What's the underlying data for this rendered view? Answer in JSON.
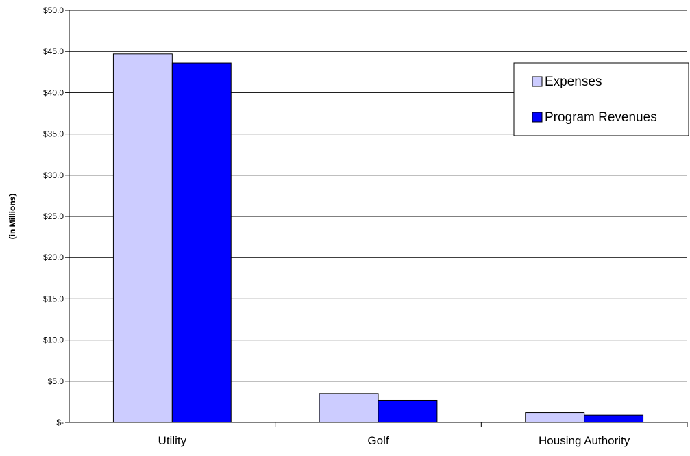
{
  "chart_data": {
    "type": "bar",
    "title": "",
    "xlabel": "",
    "ylabel": "(in Millions)",
    "categories": [
      "Utility",
      "Golf",
      "Housing Authority"
    ],
    "series": [
      {
        "name": "Expenses",
        "values": [
          44.7,
          3.5,
          1.2
        ],
        "color": "#ccccff"
      },
      {
        "name": "Program Revenues",
        "values": [
          43.6,
          2.7,
          0.9
        ],
        "color": "#0000ff"
      }
    ],
    "ylim": [
      0,
      50
    ],
    "yticks": [
      0,
      5,
      10,
      15,
      20,
      25,
      30,
      35,
      40,
      45,
      50
    ],
    "ytick_labels": [
      "$-",
      "$5.0",
      "$10.0",
      "$15.0",
      "$20.0",
      "$25.0",
      "$30.0",
      "$35.0",
      "$40.0",
      "$45.0",
      "$50.0"
    ],
    "grid": true,
    "legend_position": "top-right"
  }
}
